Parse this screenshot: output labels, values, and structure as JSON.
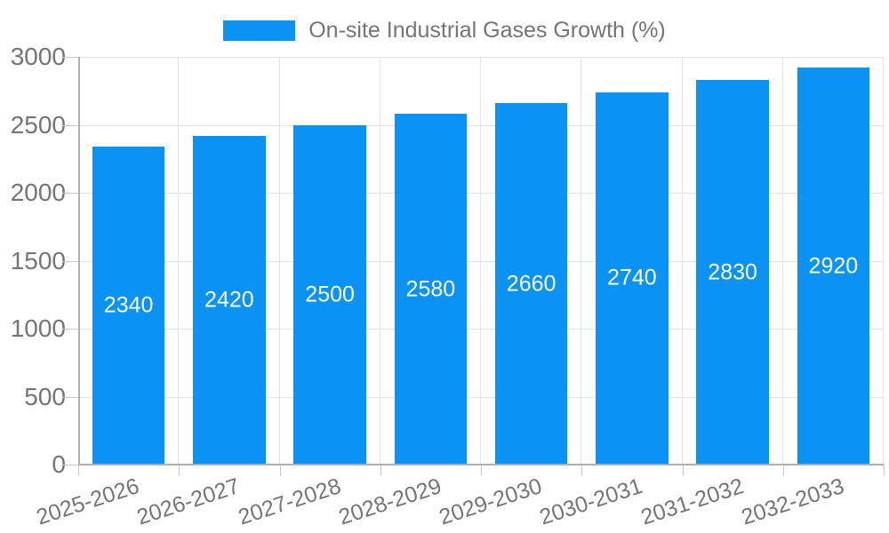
{
  "legend": {
    "label": "On-site Industrial Gases Growth (%)"
  },
  "colors": {
    "bar": "#0A93F5",
    "axis_text": "#757575",
    "grid": "#e3e3e3",
    "axis_line": "#b0b0b0",
    "tick": "#c6c6c6",
    "bar_label": "#ffffff",
    "background": "#ffffff"
  },
  "chart_data": {
    "type": "bar",
    "title": "On-site Industrial Gases Growth (%)",
    "categories": [
      "2025-2026",
      "2026-2027",
      "2027-2028",
      "2028-2029",
      "2029-2030",
      "2030-2031",
      "2031-2032",
      "2032-2033"
    ],
    "values": [
      2340,
      2420,
      2500,
      2580,
      2660,
      2740,
      2830,
      2920
    ],
    "xlabel": "",
    "ylabel": "",
    "ylim": [
      0,
      3000
    ],
    "yticks": [
      0,
      500,
      1000,
      1500,
      2000,
      2500,
      3000
    ],
    "grid": true,
    "legend_position": "top",
    "bar_value_labels_inside": true,
    "x_label_rotation_deg": -18
  }
}
